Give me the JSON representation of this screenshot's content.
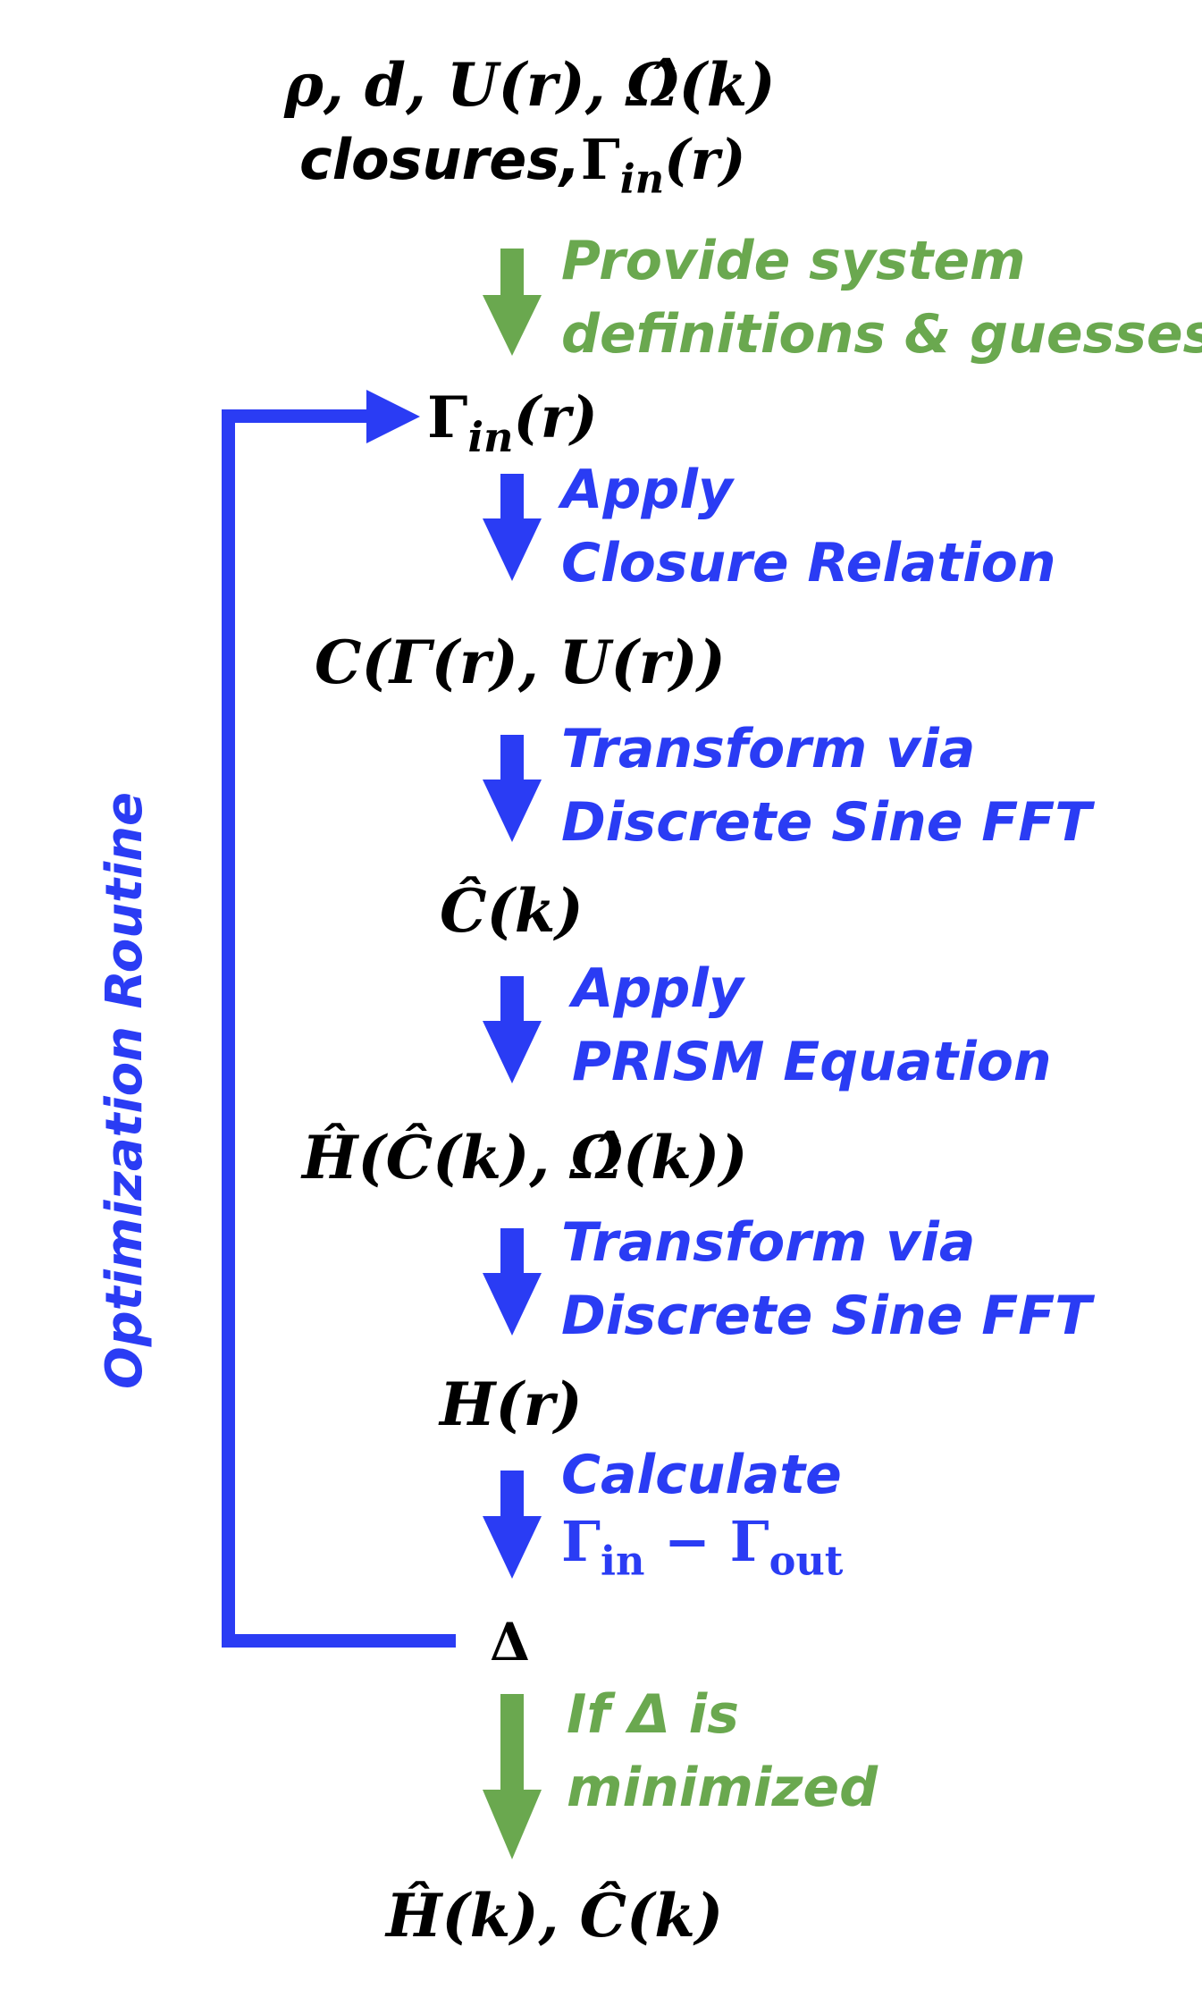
{
  "colors": {
    "blue": "#2a3cf4",
    "green": "#6aa84f",
    "black": "#000000"
  },
  "nodes": {
    "inputs_line1": "ρ, d, U(r), Ω̂(k)",
    "inputs_line2_prefix": "closures,",
    "inputs_line2_gamma": "Γ",
    "inputs_line2_sub": "in",
    "inputs_line2_suffix": "(r)",
    "gamma_in_base": "Γ",
    "gamma_in_sub": "in",
    "gamma_in_suffix": "(r)",
    "closure_c": "C(Γ(r), U(r))",
    "c_hat_k": "Ĉ(k)",
    "h_hat": "Ĥ(Ĉ(k), Ω̂(k))",
    "h_r": "H(r)",
    "delta": "Δ",
    "outputs": "Ĥ(k), Ĉ(k)"
  },
  "steps": [
    {
      "line1": "Provide system",
      "line2": "definitions & guesses"
    },
    {
      "line1": "Apply",
      "line2": "Closure Relation"
    },
    {
      "line1": "Transform via",
      "line2": "Discrete Sine FFT"
    },
    {
      "line1": "Apply",
      "line2": "PRISM Equation"
    },
    {
      "line1": "Transform via",
      "line2": "Discrete Sine FFT"
    },
    {
      "line1": "Calculate",
      "line2_gamma_in": "Γ",
      "line2_sub_in": "in",
      "line2_minus": " − ",
      "line2_gamma_out": "Γ",
      "line2_sub_out": "out"
    },
    {
      "line1": "If Δ is",
      "line2": "minimized"
    }
  ],
  "loop_label": "Optimization Routine"
}
